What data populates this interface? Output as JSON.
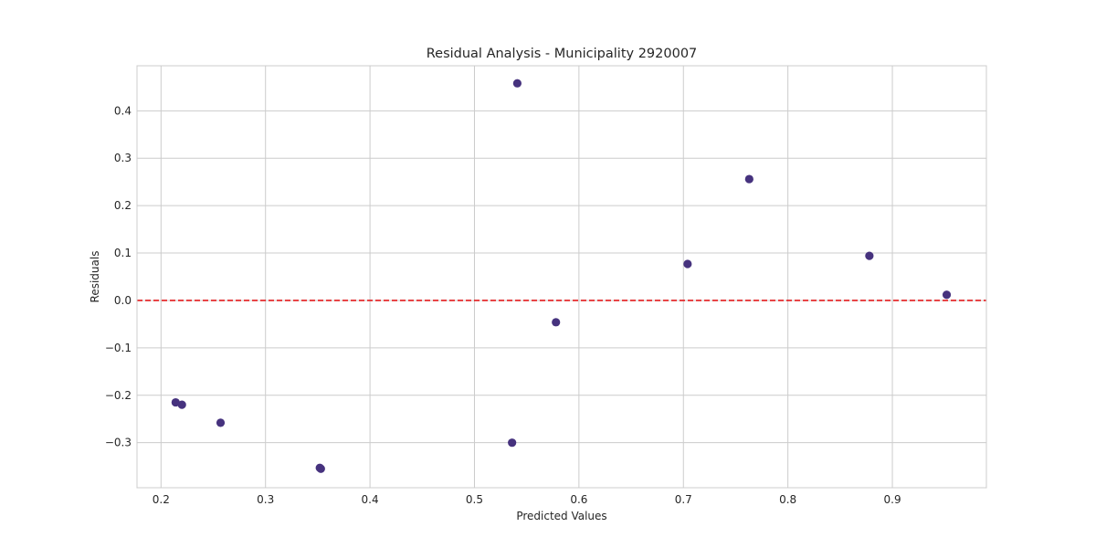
{
  "chart_data": {
    "type": "scatter",
    "title": "Residual Analysis - Municipality 2920007",
    "xlabel": "Predicted Values",
    "ylabel": "Residuals",
    "xlim": [
      0.177,
      0.99
    ],
    "ylim": [
      -0.395,
      0.495
    ],
    "xticks": [
      0.2,
      0.3,
      0.4,
      0.5,
      0.6,
      0.7,
      0.8,
      0.9
    ],
    "yticks": [
      -0.3,
      -0.2,
      -0.1,
      0.0,
      0.1,
      0.2,
      0.3,
      0.4
    ],
    "grid": true,
    "point_color": "#46327e",
    "reference_line": {
      "y": 0.0,
      "color": "#e31a1c",
      "style": "dashed"
    },
    "points": [
      {
        "x": 0.214,
        "y": -0.215
      },
      {
        "x": 0.22,
        "y": -0.22
      },
      {
        "x": 0.257,
        "y": -0.258
      },
      {
        "x": 0.352,
        "y": -0.353
      },
      {
        "x": 0.353,
        "y": -0.355
      },
      {
        "x": 0.536,
        "y": -0.3
      },
      {
        "x": 0.541,
        "y": 0.458
      },
      {
        "x": 0.578,
        "y": -0.046
      },
      {
        "x": 0.704,
        "y": 0.077
      },
      {
        "x": 0.763,
        "y": 0.256
      },
      {
        "x": 0.878,
        "y": 0.094
      },
      {
        "x": 0.952,
        "y": 0.012
      }
    ]
  }
}
